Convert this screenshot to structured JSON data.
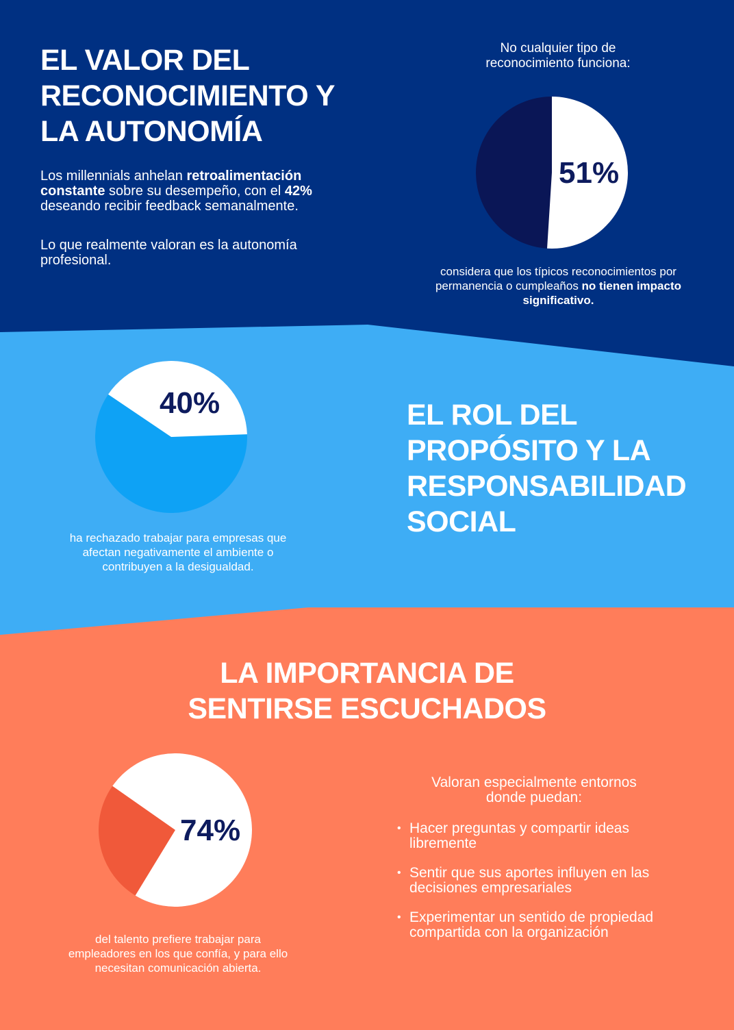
{
  "colors": {
    "navy": "#003082",
    "dark_navy": "#0a1656",
    "light_blue": "#3eadf5",
    "bright_blue": "#0ea2f5",
    "coral": "#ff7d5a",
    "red": "#f0593a",
    "white": "#ffffff"
  },
  "section1": {
    "title": "El valor del reconocimiento y la autonomía",
    "para1": {
      "a": "Los millennials anhelan ",
      "b": "retroalimentación constante",
      "c": " sobre su desempeño, con el ",
      "d": "42%",
      "e": " deseando recibir feedback semanalmente."
    },
    "para2": "Lo que realmente valoran es la autonomía profesional.",
    "chart_caption_top": "No cualquier tipo de reconocimiento funciona:",
    "pie": {
      "value_percent": 51,
      "label": "51%"
    },
    "caption": {
      "a": "considera que los típicos reconocimientos por permanencia o cumpleaños ",
      "b": "no tienen impacto significativo."
    }
  },
  "section2": {
    "title": "El rol del propósito y la responsabilidad social",
    "pie": {
      "value_percent": 40,
      "label": "40%"
    },
    "caption": "ha rechazado trabajar para empresas que afectan negativamente el ambiente o contribuyen a la desigualdad."
  },
  "section3": {
    "title_line1": "La importancia de",
    "title_line2": "sentirse escuchados",
    "pie": {
      "value_percent": 74,
      "label": "74%"
    },
    "caption": "del talento prefiere trabajar para empleadores en los que confía, y para ello necesitan comunicación abierta.",
    "list_intro": "Valoran especialmente entornos donde puedan:",
    "items": [
      "Hacer preguntas y compartir ideas libremente",
      "Sentir que sus aportes influyen en las decisiones empresariales",
      "Experimentar un sentido de propiedad compartida con la organización"
    ]
  }
}
